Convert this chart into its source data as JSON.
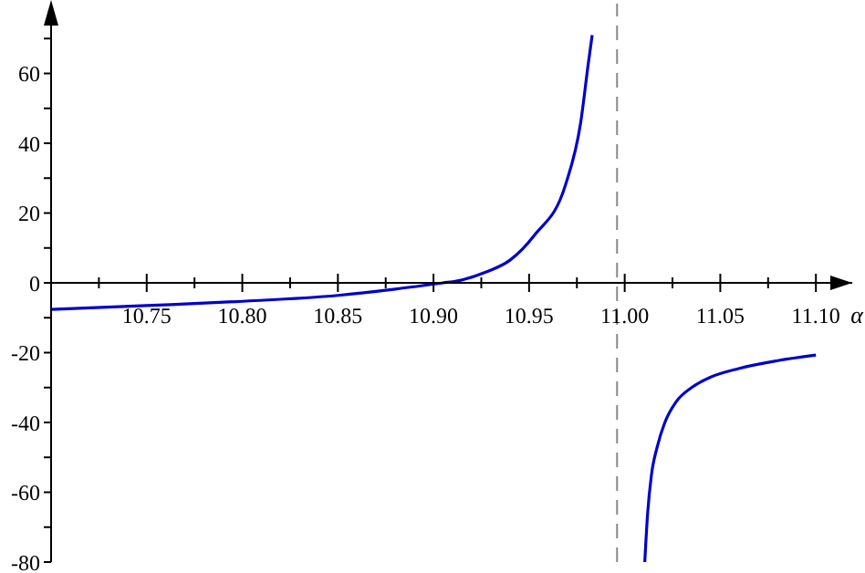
{
  "chart_data": {
    "type": "line",
    "xlabel": "α",
    "x": [
      10.7,
      10.75,
      10.8,
      10.85,
      10.88,
      10.905,
      10.912,
      10.927,
      10.94,
      10.953,
      10.969,
      10.977,
      10.981,
      10.983,
      10.996,
      11.0105,
      11.012,
      11.014,
      11.017,
      11.021,
      11.027,
      11.035,
      11.045,
      11.06,
      11.08,
      11.1
    ],
    "series": [
      {
        "color": "#0000cc",
        "values": [
          -7.6,
          -6.5,
          -5.3,
          -3.6,
          -1.8,
          0,
          0.5,
          3,
          6.5,
          13.8,
          28,
          46,
          63,
          71,
          null,
          -80,
          -66,
          -55,
          -47,
          -40,
          -34,
          -30,
          -27,
          -24.5,
          -22.3,
          -20.7
        ]
      }
    ],
    "xlim": [
      10.7,
      11.119
    ],
    "ylim": [
      -80,
      80
    ],
    "xticks": [
      {
        "value": 10.725,
        "label": null
      },
      10.75,
      {
        "value": 10.775,
        "label": null
      },
      {
        "value": 10.8,
        "label": "10.80"
      },
      {
        "value": 10.825,
        "label": null
      },
      10.85,
      {
        "value": 10.875,
        "label": null
      },
      {
        "value": 10.9,
        "label": "10.90"
      },
      {
        "value": 10.925,
        "label": null
      },
      10.95,
      {
        "value": 10.975,
        "label": null
      },
      {
        "value": 11.0,
        "label": "11.00"
      },
      {
        "value": 11.025,
        "label": null
      },
      11.05,
      {
        "value": 11.075,
        "label": null
      },
      {
        "value": 11.1,
        "label": "11.10"
      }
    ],
    "yticks": [
      -80,
      {
        "value": -70,
        "label": null
      },
      -60,
      {
        "value": -50,
        "label": null
      },
      -40,
      {
        "value": -30,
        "label": null
      },
      -20,
      {
        "value": -10,
        "label": null
      },
      0,
      {
        "value": 10,
        "label": null
      },
      20,
      {
        "value": 30,
        "label": null
      },
      40,
      {
        "value": 50,
        "label": null
      },
      60,
      {
        "value": 70,
        "label": null
      }
    ],
    "ref_lines": [
      {
        "axis": "x",
        "value": 10.996,
        "color": "#888888",
        "line_style": "dashed"
      }
    ],
    "grid": false,
    "legend": false,
    "marker": "none",
    "line_style": "solid"
  }
}
